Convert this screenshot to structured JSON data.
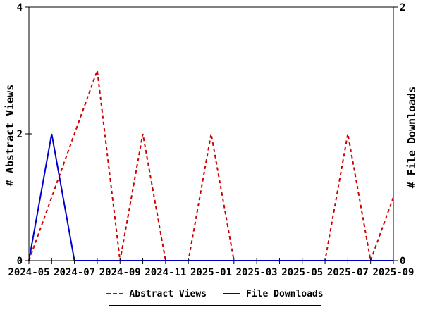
{
  "chart_data": {
    "type": "line",
    "x": [
      "2024-05",
      "2024-06",
      "2024-07",
      "2024-08",
      "2024-09",
      "2024-10",
      "2024-11",
      "2024-12",
      "2025-01",
      "2025-02",
      "2025-03",
      "2025-04",
      "2025-05",
      "2025-06",
      "2025-07",
      "2025-08",
      "2025-09"
    ],
    "x_tick_labels": [
      "2024-05",
      "2024-07",
      "2024-09",
      "2024-11",
      "2025-01",
      "2025-03",
      "2025-05",
      "2025-07",
      "2025-09"
    ],
    "series": [
      {
        "name": "Abstract Views",
        "axis": "left",
        "color": "#cc0000",
        "style": "dashed",
        "values": [
          0,
          1,
          2,
          3,
          0,
          2,
          0,
          0,
          2,
          0,
          0,
          0,
          0,
          0,
          2,
          0,
          1
        ]
      },
      {
        "name": "File Downloads",
        "axis": "right",
        "color": "#0000cc",
        "style": "solid",
        "values": [
          0,
          1,
          0,
          0,
          0,
          0,
          0,
          0,
          0,
          0,
          0,
          0,
          0,
          0,
          0,
          0,
          0
        ]
      }
    ],
    "left_axis": {
      "label": "# Abstract Views",
      "min": 0,
      "max": 4,
      "ticks": [
        0,
        2,
        4
      ]
    },
    "right_axis": {
      "label": "# File Downloads",
      "min": 0,
      "max": 2,
      "ticks": [
        0,
        2
      ]
    },
    "grid": false,
    "legend_position": "bottom",
    "axis_color": "#000000",
    "background": "#ffffff"
  }
}
